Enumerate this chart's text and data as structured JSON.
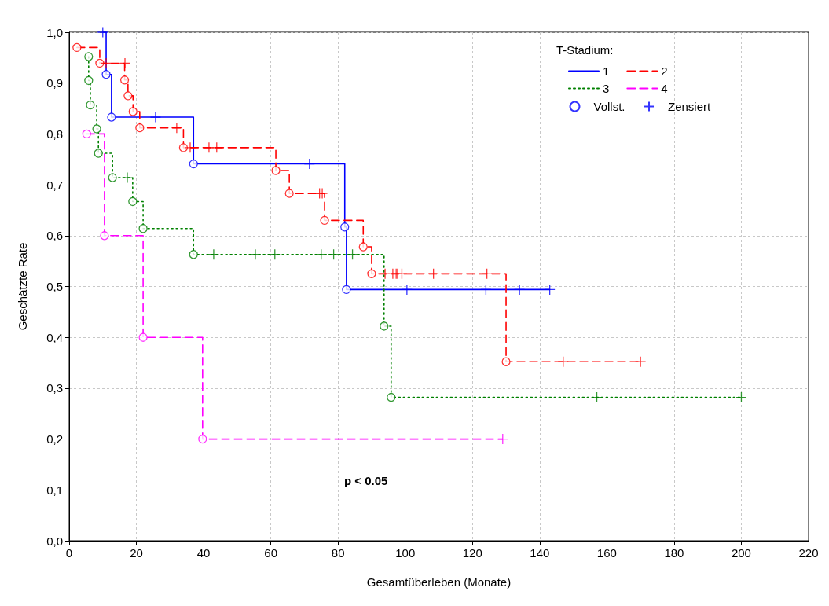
{
  "chart_data": {
    "type": "step",
    "xlabel": "Gesamtüberleben (Monate)",
    "ylabel": "Geschätzte Rate",
    "legend_title": "T-Stadium:",
    "annotations": [
      "p < 0.05"
    ],
    "xlim": [
      0,
      220
    ],
    "xticks": [
      0,
      20,
      40,
      60,
      80,
      100,
      120,
      140,
      160,
      180,
      200,
      220
    ],
    "ylim": [
      0,
      1
    ],
    "yticks": [
      {
        "value": 0,
        "label": "0,0"
      },
      {
        "value": 0.1,
        "label": "0,1"
      },
      {
        "value": 0.2,
        "label": "0,2"
      },
      {
        "value": 0.3,
        "label": "0,3"
      },
      {
        "value": 0.4,
        "label": "0,4"
      },
      {
        "value": 0.5,
        "label": "0,5"
      },
      {
        "value": 0.6,
        "label": "0,6"
      },
      {
        "value": 0.7,
        "label": "0,7"
      },
      {
        "value": 0.8,
        "label": "0,8"
      },
      {
        "value": 0.9,
        "label": "0,9"
      },
      {
        "value": 1,
        "label": "1,0"
      }
    ],
    "grid": true,
    "legend": "top right",
    "marker": "none",
    "series": [
      {
        "name": "1",
        "color": "#0000ff",
        "line_style": "solid",
        "x": [
          10,
          11,
          12.6,
          37,
          82,
          82.5,
          143
        ],
        "values": [
          1.0,
          0.917,
          0.833,
          0.741,
          0.617,
          0.494,
          0.494
        ]
      },
      {
        "name": "2",
        "color": "#ff0000",
        "line_style": "dashed",
        "x": [
          2.3,
          9.1,
          16.5,
          17.5,
          19,
          21,
          34,
          61.5,
          65.5,
          76,
          87.5,
          90,
          130,
          170
        ],
        "values": [
          0.97,
          0.939,
          0.906,
          0.875,
          0.844,
          0.812,
          0.773,
          0.728,
          0.683,
          0.63,
          0.578,
          0.525,
          0.352,
          0.352
        ]
      },
      {
        "name": "3",
        "color": "#008000",
        "line_style": "dotted",
        "x": [
          5.8,
          5.8,
          6.3,
          8.2,
          8.7,
          12.9,
          18.9,
          22,
          37,
          93.7,
          95.8,
          200
        ],
        "values": [
          0.952,
          0.905,
          0.857,
          0.81,
          0.762,
          0.714,
          0.667,
          0.614,
          0.563,
          0.422,
          0.282,
          0.282
        ]
      },
      {
        "name": "4",
        "color": "#ff00ff",
        "line_style": "dashed",
        "x": [
          5.2,
          10.5,
          22,
          39.7,
          129
        ],
        "values": [
          0.8,
          0.6,
          0.4,
          0.2,
          0.2
        ]
      },
      {
        "name": "Vollst.",
        "type": "scatter",
        "marker": "circle",
        "color": "#0000ff",
        "x": [
          11,
          12.6,
          37,
          82,
          82.5,
          2.3,
          9.1,
          16.5,
          17.5,
          19,
          21,
          34,
          61.5,
          65.5,
          76,
          87.5,
          90,
          130,
          5.8,
          5.8,
          6.3,
          8.2,
          8.7,
          12.9,
          18.9,
          22,
          37,
          93.7,
          95.8,
          5.2,
          10.5,
          22,
          39.7
        ],
        "values": [
          0.917,
          0.833,
          0.741,
          0.617,
          0.494,
          0.97,
          0.939,
          0.906,
          0.875,
          0.844,
          0.812,
          0.773,
          0.728,
          0.683,
          0.63,
          0.578,
          0.525,
          0.352,
          0.952,
          0.905,
          0.857,
          0.81,
          0.762,
          0.714,
          0.667,
          0.614,
          0.563,
          0.422,
          0.282,
          0.8,
          0.6,
          0.4,
          0.2
        ],
        "colors": [
          "#0000ff",
          "#0000ff",
          "#0000ff",
          "#0000ff",
          "#0000ff",
          "#ff0000",
          "#ff0000",
          "#ff0000",
          "#ff0000",
          "#ff0000",
          "#ff0000",
          "#ff0000",
          "#ff0000",
          "#ff0000",
          "#ff0000",
          "#ff0000",
          "#ff0000",
          "#ff0000",
          "#008000",
          "#008000",
          "#008000",
          "#008000",
          "#008000",
          "#008000",
          "#008000",
          "#008000",
          "#008000",
          "#008000",
          "#008000",
          "#ff00ff",
          "#ff00ff",
          "#ff00ff",
          "#ff00ff"
        ]
      },
      {
        "name": "Zensiert",
        "type": "scatter",
        "marker": "cross",
        "color": "#0000ff",
        "x": [
          10,
          25.7,
          71.5,
          100.5,
          124,
          134,
          143,
          11,
          16.6,
          32,
          36,
          41.6,
          43.9,
          74.5,
          75.3,
          94,
          96.3,
          97.3,
          97.7,
          99,
          108.4,
          124.3,
          147,
          170,
          17.3,
          43,
          55.4,
          61.2,
          75,
          78.7,
          84.3,
          157,
          200,
          129
        ],
        "values": [
          1.0,
          0.833,
          0.741,
          0.494,
          0.494,
          0.494,
          0.494,
          0.939,
          0.939,
          0.812,
          0.773,
          0.773,
          0.773,
          0.683,
          0.683,
          0.525,
          0.525,
          0.525,
          0.525,
          0.525,
          0.525,
          0.525,
          0.352,
          0.352,
          0.714,
          0.563,
          0.563,
          0.563,
          0.563,
          0.563,
          0.563,
          0.282,
          0.282,
          0.2
        ],
        "colors": [
          "#0000ff",
          "#0000ff",
          "#0000ff",
          "#0000ff",
          "#0000ff",
          "#0000ff",
          "#0000ff",
          "#ff0000",
          "#ff0000",
          "#ff0000",
          "#ff0000",
          "#ff0000",
          "#ff0000",
          "#ff0000",
          "#ff0000",
          "#ff0000",
          "#ff0000",
          "#ff0000",
          "#ff0000",
          "#ff0000",
          "#ff0000",
          "#ff0000",
          "#ff0000",
          "#ff0000",
          "#008000",
          "#008000",
          "#008000",
          "#008000",
          "#008000",
          "#008000",
          "#008000",
          "#008000",
          "#008000",
          "#ff00ff"
        ]
      }
    ]
  }
}
